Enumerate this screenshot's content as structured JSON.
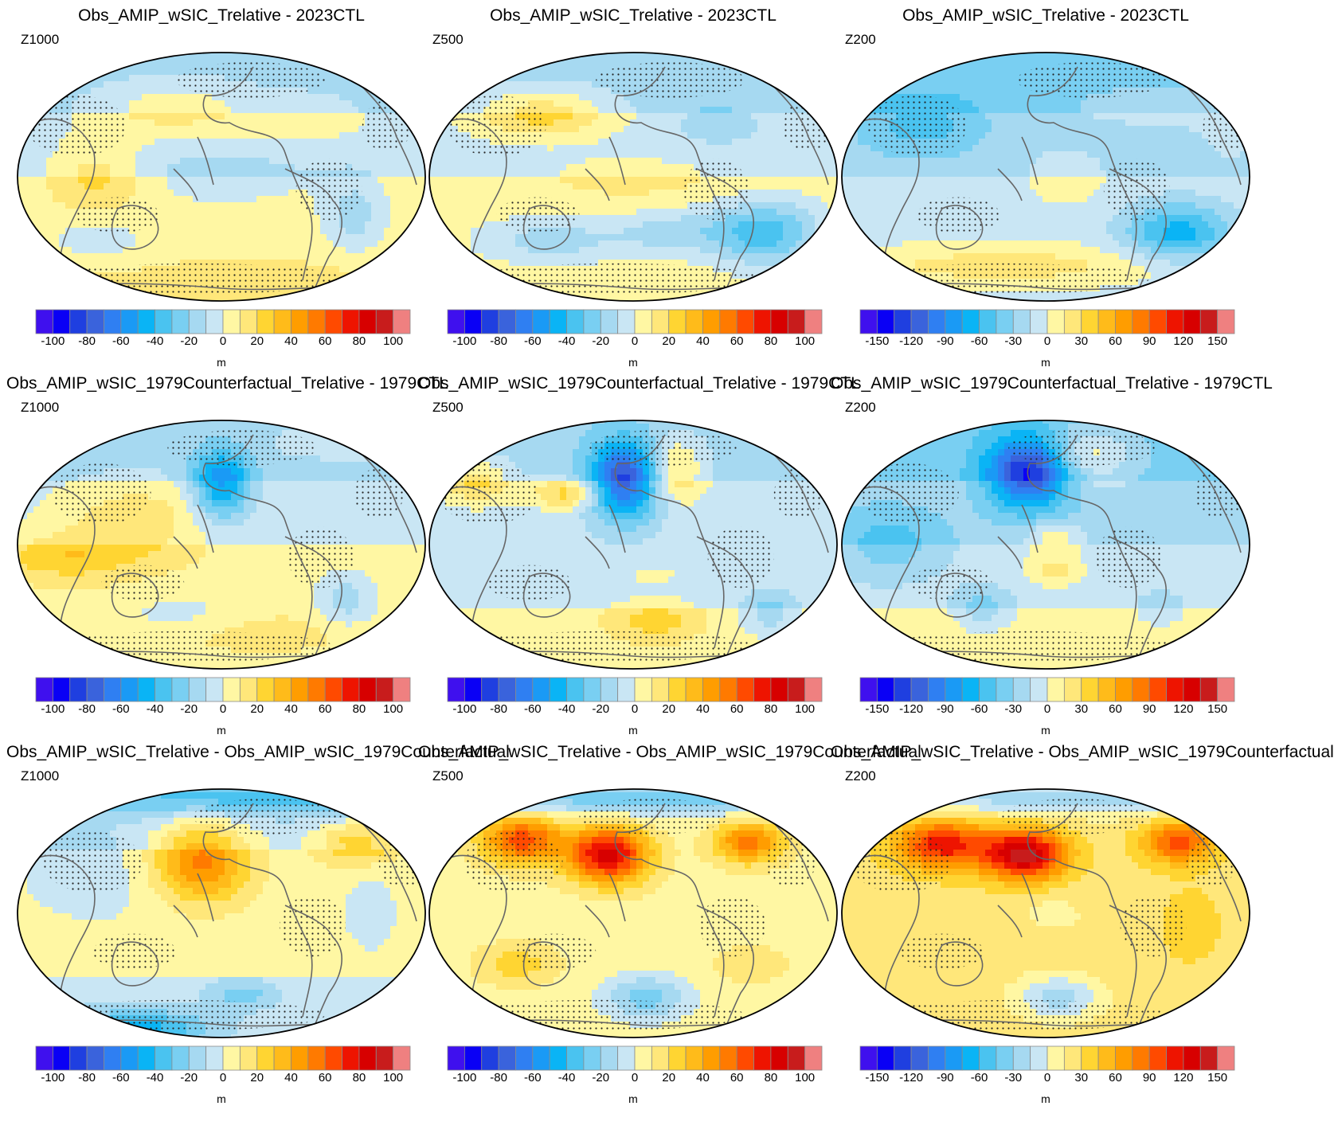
{
  "figure": {
    "rows": [
      {
        "title": "Obs_AMIP_wSIC_Trelative - 2023CTL",
        "panels": [
          {
            "level": "Z1000",
            "scale": "a",
            "pattern": 0
          },
          {
            "level": "Z500",
            "scale": "a",
            "pattern": 1
          },
          {
            "level": "Z200",
            "scale": "b",
            "pattern": 2
          }
        ]
      },
      {
        "title": "Obs_AMIP_wSIC_1979Counterfactual_Trelative - 1979CTL",
        "panels": [
          {
            "level": "Z1000",
            "scale": "a",
            "pattern": 3
          },
          {
            "level": "Z500",
            "scale": "a",
            "pattern": 4
          },
          {
            "level": "Z200",
            "scale": "b",
            "pattern": 5
          }
        ]
      },
      {
        "title": "Obs_AMIP_wSIC_Trelative - Obs_AMIP_wSIC_1979Counterfactual",
        "panels": [
          {
            "level": "Z1000",
            "scale": "a",
            "pattern": 6
          },
          {
            "level": "Z500",
            "scale": "a",
            "pattern": 7
          },
          {
            "level": "Z200",
            "scale": "b",
            "pattern": 8
          }
        ]
      }
    ],
    "scales": {
      "a": {
        "ticks": [
          "-100",
          "-80",
          "-60",
          "-40",
          "-20",
          "0",
          "20",
          "40",
          "60",
          "80",
          "100"
        ],
        "unit": "m"
      },
      "b": {
        "ticks": [
          "-150",
          "-120",
          "-90",
          "-60",
          "-30",
          "0",
          "30",
          "60",
          "90",
          "120",
          "150"
        ],
        "unit": "m"
      }
    },
    "colormap": [
      "#3f10ee",
      "#0a00f5",
      "#1f3fe0",
      "#3a63dc",
      "#2f7ff2",
      "#1a9af5",
      "#0ab4f5",
      "#4ac3f0",
      "#79cff2",
      "#a6d9f1",
      "#c9e6f4",
      "#fff7a3",
      "#ffe77a",
      "#ffd532",
      "#ffbb1a",
      "#ff9d00",
      "#ff7a00",
      "#ff4a00",
      "#ee1400",
      "#d70000",
      "#c81c1c",
      "#ef8080"
    ]
  }
}
